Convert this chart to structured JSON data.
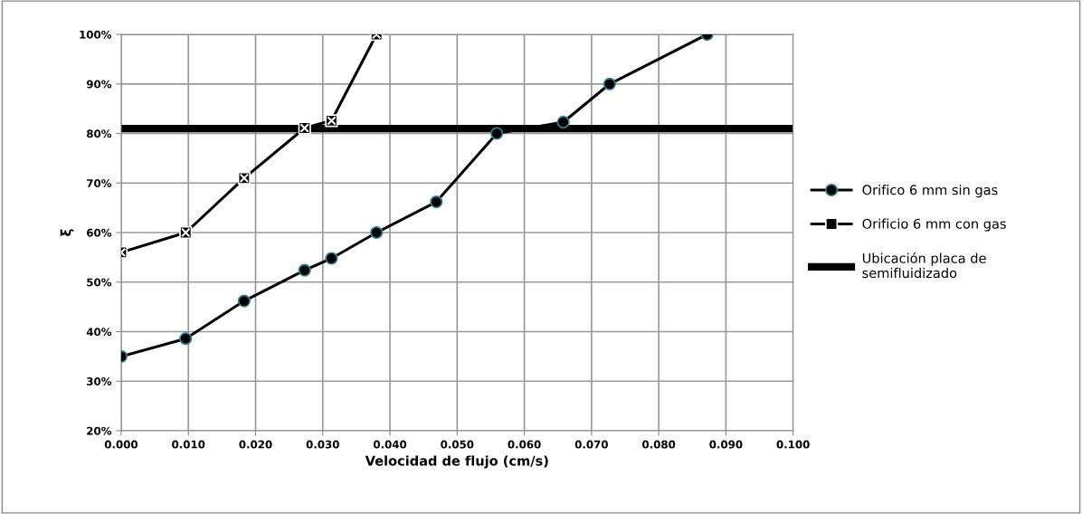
{
  "chart_data": {
    "type": "line",
    "xlabel": "Velocidad de flujo (cm/s)",
    "ylabel": "ξ",
    "series": [
      {
        "name": "Orifico 6 mm sin gas",
        "color": "#000000",
        "marker": "circle",
        "x": [
          0.0,
          0.0096,
          0.0183,
          0.0273,
          0.0313,
          0.038,
          0.0469,
          0.0559,
          0.0658,
          0.0727,
          0.0872
        ],
        "values": [
          35,
          38.6,
          46.2,
          52.4,
          54.8,
          60,
          66.2,
          80,
          82.3,
          90,
          100
        ]
      },
      {
        "name": "Orificio 6 mm con gas",
        "color": "#000000",
        "marker": "square",
        "x": [
          0.0,
          0.0096,
          0.0183,
          0.0273,
          0.0313,
          0.038
        ],
        "values": [
          56,
          60,
          71.0,
          81.1,
          82.6,
          100
        ]
      }
    ],
    "ref_lines": [
      {
        "axis": "y",
        "value": 81,
        "label": "Ubicación placa de semifluidizado",
        "color": "#000000"
      }
    ],
    "xlim": [
      0.0,
      0.1
    ],
    "xticks": [
      {
        "value": 0.0,
        "label": "0.000"
      },
      {
        "value": 0.01,
        "label": "0.010"
      },
      {
        "value": 0.02,
        "label": "0.020"
      },
      {
        "value": 0.03,
        "label": "0.030"
      },
      {
        "value": 0.04,
        "label": "0.040"
      },
      {
        "value": 0.05,
        "label": "0.050"
      },
      {
        "value": 0.06,
        "label": "0.060"
      },
      {
        "value": 0.07,
        "label": "0.070"
      },
      {
        "value": 0.08,
        "label": "0.080"
      },
      {
        "value": 0.09,
        "label": "0.090"
      },
      {
        "value": 0.1,
        "label": "0.100"
      }
    ],
    "ylim": [
      20,
      100
    ],
    "yticks": [
      {
        "value": 20,
        "label": "20%"
      },
      {
        "value": 30,
        "label": "30%"
      },
      {
        "value": 40,
        "label": "40%"
      },
      {
        "value": 50,
        "label": "50%"
      },
      {
        "value": 60,
        "label": "60%"
      },
      {
        "value": 70,
        "label": "70%"
      },
      {
        "value": 80,
        "label": "80%"
      },
      {
        "value": 90,
        "label": "90%"
      },
      {
        "value": 100,
        "label": "100%"
      }
    ],
    "grid": true,
    "legend": "right",
    "line_style": "solid"
  }
}
